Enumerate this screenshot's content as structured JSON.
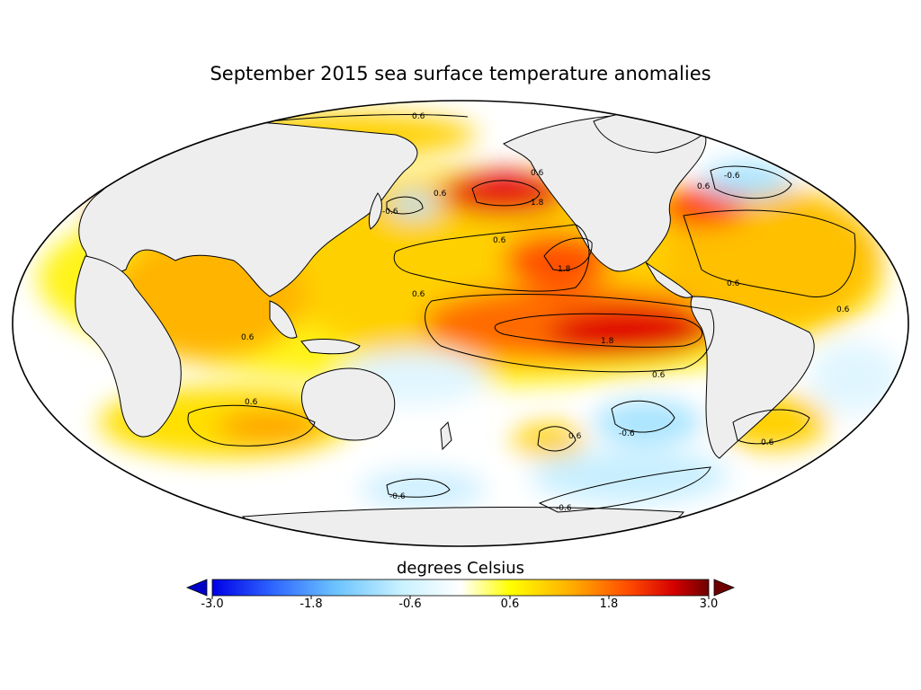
{
  "title": "September 2015 sea surface temperature anomalies",
  "colorbar": {
    "label": "degrees Celsius",
    "min": -3.0,
    "max": 3.0,
    "ticks": [
      "-3.0",
      "-1.8",
      "-0.6",
      "0.6",
      "1.8",
      "3.0"
    ],
    "stops": [
      "#0000e6",
      "#3f7fff",
      "#87d4ff",
      "#e0f8ff",
      "#ffffff",
      "#ffff00",
      "#ffb000",
      "#ff5a00",
      "#e00000",
      "#6e0000"
    ]
  },
  "contours": [
    {
      "value": "0.6",
      "label": "0.6"
    },
    {
      "value": "1.8",
      "label": "1.8"
    },
    {
      "value": "-0.6",
      "label": "-0.6"
    }
  ],
  "colors": {
    "land": "#eeeeee",
    "ocean_warm": "#ffd400",
    "ocean_hot": "#e81010",
    "ocean_cool": "#bfe9ff",
    "ocean_neutral": "#ffffff"
  }
}
